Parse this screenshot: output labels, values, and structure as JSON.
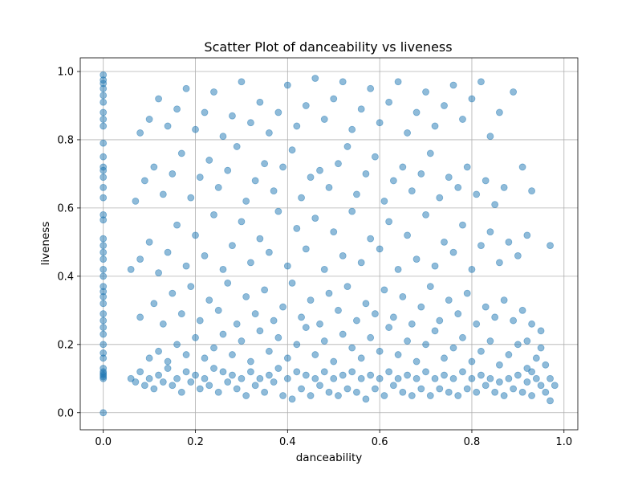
{
  "chart_data": {
    "type": "scatter",
    "title": "Scatter Plot of danceability vs liveness",
    "xlabel": "danceability",
    "ylabel": "liveness",
    "xlim": [
      -0.05,
      1.03
    ],
    "ylim": [
      -0.05,
      1.04
    ],
    "xticks": [
      0.0,
      0.2,
      0.4,
      0.6,
      0.8,
      1.0
    ],
    "yticks": [
      0.0,
      0.2,
      0.4,
      0.6,
      0.8,
      1.0
    ],
    "xtick_labels": [
      "0.0",
      "0.2",
      "0.4",
      "0.6",
      "0.8",
      "1.0"
    ],
    "ytick_labels": [
      "0.0",
      "0.2",
      "0.4",
      "0.6",
      "0.8",
      "1.0"
    ],
    "grid": true,
    "legend": "none",
    "marker_color": "#1f77b4",
    "marker_alpha": 0.5,
    "points": [
      [
        0.0,
        0.0
      ],
      [
        0.0,
        0.1
      ],
      [
        0.0,
        0.105
      ],
      [
        0.0,
        0.11
      ],
      [
        0.0,
        0.115
      ],
      [
        0.0,
        0.12
      ],
      [
        0.0,
        0.13
      ],
      [
        0.0,
        0.16
      ],
      [
        0.0,
        0.175
      ],
      [
        0.0,
        0.2
      ],
      [
        0.0,
        0.23
      ],
      [
        0.0,
        0.25
      ],
      [
        0.0,
        0.27
      ],
      [
        0.0,
        0.29
      ],
      [
        0.0,
        0.32
      ],
      [
        0.0,
        0.34
      ],
      [
        0.0,
        0.355
      ],
      [
        0.0,
        0.37
      ],
      [
        0.0,
        0.4
      ],
      [
        0.0,
        0.42
      ],
      [
        0.0,
        0.45
      ],
      [
        0.0,
        0.47
      ],
      [
        0.0,
        0.49
      ],
      [
        0.0,
        0.51
      ],
      [
        0.0,
        0.565
      ],
      [
        0.0,
        0.58
      ],
      [
        0.0,
        0.63
      ],
      [
        0.0,
        0.66
      ],
      [
        0.0,
        0.69
      ],
      [
        0.0,
        0.71
      ],
      [
        0.0,
        0.72
      ],
      [
        0.0,
        0.75
      ],
      [
        0.0,
        0.79
      ],
      [
        0.0,
        0.84
      ],
      [
        0.0,
        0.86
      ],
      [
        0.0,
        0.88
      ],
      [
        0.0,
        0.91
      ],
      [
        0.0,
        0.93
      ],
      [
        0.0,
        0.95
      ],
      [
        0.0,
        0.965
      ],
      [
        0.0,
        0.975
      ],
      [
        0.0,
        0.99
      ],
      [
        0.06,
        0.1
      ],
      [
        0.07,
        0.09
      ],
      [
        0.08,
        0.12
      ],
      [
        0.09,
        0.08
      ],
      [
        0.1,
        0.1
      ],
      [
        0.11,
        0.07
      ],
      [
        0.12,
        0.11
      ],
      [
        0.13,
        0.09
      ],
      [
        0.14,
        0.13
      ],
      [
        0.15,
        0.08
      ],
      [
        0.16,
        0.1
      ],
      [
        0.17,
        0.06
      ],
      [
        0.18,
        0.12
      ],
      [
        0.19,
        0.09
      ],
      [
        0.2,
        0.11
      ],
      [
        0.21,
        0.07
      ],
      [
        0.22,
        0.1
      ],
      [
        0.23,
        0.08
      ],
      [
        0.24,
        0.13
      ],
      [
        0.25,
        0.06
      ],
      [
        0.26,
        0.12
      ],
      [
        0.27,
        0.09
      ],
      [
        0.28,
        0.11
      ],
      [
        0.29,
        0.07
      ],
      [
        0.3,
        0.1
      ],
      [
        0.31,
        0.05
      ],
      [
        0.32,
        0.12
      ],
      [
        0.33,
        0.08
      ],
      [
        0.34,
        0.1
      ],
      [
        0.35,
        0.06
      ],
      [
        0.36,
        0.11
      ],
      [
        0.37,
        0.09
      ],
      [
        0.38,
        0.13
      ],
      [
        0.39,
        0.05
      ],
      [
        0.4,
        0.1
      ],
      [
        0.41,
        0.04
      ],
      [
        0.42,
        0.12
      ],
      [
        0.43,
        0.07
      ],
      [
        0.44,
        0.11
      ],
      [
        0.45,
        0.05
      ],
      [
        0.46,
        0.1
      ],
      [
        0.47,
        0.08
      ],
      [
        0.48,
        0.12
      ],
      [
        0.49,
        0.06
      ],
      [
        0.5,
        0.1
      ],
      [
        0.51,
        0.05
      ],
      [
        0.52,
        0.11
      ],
      [
        0.53,
        0.07
      ],
      [
        0.54,
        0.12
      ],
      [
        0.55,
        0.06
      ],
      [
        0.56,
        0.1
      ],
      [
        0.57,
        0.04
      ],
      [
        0.58,
        0.11
      ],
      [
        0.59,
        0.07
      ],
      [
        0.6,
        0.1
      ],
      [
        0.61,
        0.05
      ],
      [
        0.62,
        0.12
      ],
      [
        0.63,
        0.08
      ],
      [
        0.64,
        0.1
      ],
      [
        0.65,
        0.06
      ],
      [
        0.66,
        0.11
      ],
      [
        0.67,
        0.05
      ],
      [
        0.68,
        0.1
      ],
      [
        0.69,
        0.07
      ],
      [
        0.7,
        0.12
      ],
      [
        0.71,
        0.05
      ],
      [
        0.72,
        0.1
      ],
      [
        0.73,
        0.07
      ],
      [
        0.74,
        0.11
      ],
      [
        0.75,
        0.06
      ],
      [
        0.76,
        0.1
      ],
      [
        0.77,
        0.05
      ],
      [
        0.78,
        0.12
      ],
      [
        0.79,
        0.07
      ],
      [
        0.8,
        0.1
      ],
      [
        0.81,
        0.06
      ],
      [
        0.82,
        0.11
      ],
      [
        0.83,
        0.08
      ],
      [
        0.84,
        0.1
      ],
      [
        0.85,
        0.06
      ],
      [
        0.86,
        0.09
      ],
      [
        0.87,
        0.05
      ],
      [
        0.88,
        0.1
      ],
      [
        0.89,
        0.07
      ],
      [
        0.9,
        0.11
      ],
      [
        0.91,
        0.06
      ],
      [
        0.92,
        0.09
      ],
      [
        0.93,
        0.05
      ],
      [
        0.94,
        0.1
      ],
      [
        0.95,
        0.08
      ],
      [
        0.96,
        0.06
      ],
      [
        0.97,
        0.1
      ],
      [
        0.98,
        0.08
      ],
      [
        0.97,
        0.035
      ],
      [
        0.96,
        0.14
      ],
      [
        0.95,
        0.19
      ],
      [
        0.94,
        0.16
      ],
      [
        0.93,
        0.12
      ],
      [
        0.92,
        0.21
      ],
      [
        0.1,
        0.16
      ],
      [
        0.12,
        0.18
      ],
      [
        0.14,
        0.15
      ],
      [
        0.16,
        0.2
      ],
      [
        0.18,
        0.17
      ],
      [
        0.2,
        0.22
      ],
      [
        0.22,
        0.16
      ],
      [
        0.24,
        0.19
      ],
      [
        0.26,
        0.23
      ],
      [
        0.28,
        0.17
      ],
      [
        0.3,
        0.21
      ],
      [
        0.32,
        0.15
      ],
      [
        0.34,
        0.24
      ],
      [
        0.36,
        0.18
      ],
      [
        0.38,
        0.22
      ],
      [
        0.4,
        0.16
      ],
      [
        0.42,
        0.2
      ],
      [
        0.44,
        0.25
      ],
      [
        0.46,
        0.17
      ],
      [
        0.48,
        0.21
      ],
      [
        0.5,
        0.15
      ],
      [
        0.52,
        0.23
      ],
      [
        0.54,
        0.19
      ],
      [
        0.56,
        0.16
      ],
      [
        0.58,
        0.22
      ],
      [
        0.6,
        0.18
      ],
      [
        0.62,
        0.25
      ],
      [
        0.64,
        0.17
      ],
      [
        0.66,
        0.21
      ],
      [
        0.68,
        0.15
      ],
      [
        0.7,
        0.2
      ],
      [
        0.72,
        0.24
      ],
      [
        0.74,
        0.16
      ],
      [
        0.76,
        0.19
      ],
      [
        0.78,
        0.22
      ],
      [
        0.8,
        0.15
      ],
      [
        0.82,
        0.18
      ],
      [
        0.84,
        0.21
      ],
      [
        0.86,
        0.14
      ],
      [
        0.88,
        0.17
      ],
      [
        0.9,
        0.2
      ],
      [
        0.92,
        0.13
      ],
      [
        0.08,
        0.28
      ],
      [
        0.11,
        0.32
      ],
      [
        0.13,
        0.26
      ],
      [
        0.15,
        0.35
      ],
      [
        0.17,
        0.29
      ],
      [
        0.19,
        0.37
      ],
      [
        0.21,
        0.27
      ],
      [
        0.23,
        0.33
      ],
      [
        0.25,
        0.3
      ],
      [
        0.27,
        0.38
      ],
      [
        0.29,
        0.26
      ],
      [
        0.31,
        0.34
      ],
      [
        0.33,
        0.29
      ],
      [
        0.35,
        0.36
      ],
      [
        0.37,
        0.27
      ],
      [
        0.39,
        0.31
      ],
      [
        0.41,
        0.38
      ],
      [
        0.43,
        0.28
      ],
      [
        0.45,
        0.33
      ],
      [
        0.47,
        0.26
      ],
      [
        0.49,
        0.35
      ],
      [
        0.51,
        0.3
      ],
      [
        0.53,
        0.37
      ],
      [
        0.55,
        0.27
      ],
      [
        0.57,
        0.32
      ],
      [
        0.59,
        0.29
      ],
      [
        0.61,
        0.36
      ],
      [
        0.63,
        0.28
      ],
      [
        0.65,
        0.34
      ],
      [
        0.67,
        0.26
      ],
      [
        0.69,
        0.31
      ],
      [
        0.71,
        0.37
      ],
      [
        0.73,
        0.27
      ],
      [
        0.75,
        0.33
      ],
      [
        0.77,
        0.29
      ],
      [
        0.79,
        0.35
      ],
      [
        0.81,
        0.26
      ],
      [
        0.83,
        0.31
      ],
      [
        0.85,
        0.28
      ],
      [
        0.87,
        0.33
      ],
      [
        0.89,
        0.27
      ],
      [
        0.91,
        0.3
      ],
      [
        0.93,
        0.26
      ],
      [
        0.95,
        0.24
      ],
      [
        0.06,
        0.42
      ],
      [
        0.08,
        0.45
      ],
      [
        0.1,
        0.5
      ],
      [
        0.12,
        0.41
      ],
      [
        0.14,
        0.47
      ],
      [
        0.16,
        0.55
      ],
      [
        0.18,
        0.43
      ],
      [
        0.2,
        0.52
      ],
      [
        0.22,
        0.46
      ],
      [
        0.24,
        0.58
      ],
      [
        0.26,
        0.42
      ],
      [
        0.28,
        0.49
      ],
      [
        0.3,
        0.56
      ],
      [
        0.32,
        0.44
      ],
      [
        0.34,
        0.51
      ],
      [
        0.36,
        0.47
      ],
      [
        0.38,
        0.59
      ],
      [
        0.4,
        0.43
      ],
      [
        0.42,
        0.54
      ],
      [
        0.44,
        0.48
      ],
      [
        0.46,
        0.57
      ],
      [
        0.48,
        0.42
      ],
      [
        0.5,
        0.53
      ],
      [
        0.52,
        0.46
      ],
      [
        0.54,
        0.59
      ],
      [
        0.56,
        0.44
      ],
      [
        0.58,
        0.51
      ],
      [
        0.6,
        0.48
      ],
      [
        0.62,
        0.56
      ],
      [
        0.64,
        0.42
      ],
      [
        0.66,
        0.52
      ],
      [
        0.68,
        0.45
      ],
      [
        0.7,
        0.58
      ],
      [
        0.72,
        0.43
      ],
      [
        0.74,
        0.5
      ],
      [
        0.76,
        0.47
      ],
      [
        0.78,
        0.55
      ],
      [
        0.8,
        0.42
      ],
      [
        0.82,
        0.49
      ],
      [
        0.84,
        0.53
      ],
      [
        0.86,
        0.44
      ],
      [
        0.88,
        0.5
      ],
      [
        0.9,
        0.46
      ],
      [
        0.92,
        0.52
      ],
      [
        0.97,
        0.49
      ],
      [
        0.07,
        0.62
      ],
      [
        0.09,
        0.68
      ],
      [
        0.11,
        0.72
      ],
      [
        0.13,
        0.64
      ],
      [
        0.15,
        0.7
      ],
      [
        0.17,
        0.76
      ],
      [
        0.19,
        0.63
      ],
      [
        0.21,
        0.69
      ],
      [
        0.23,
        0.74
      ],
      [
        0.25,
        0.66
      ],
      [
        0.27,
        0.71
      ],
      [
        0.29,
        0.78
      ],
      [
        0.31,
        0.62
      ],
      [
        0.33,
        0.68
      ],
      [
        0.35,
        0.73
      ],
      [
        0.37,
        0.65
      ],
      [
        0.39,
        0.72
      ],
      [
        0.41,
        0.77
      ],
      [
        0.43,
        0.63
      ],
      [
        0.45,
        0.69
      ],
      [
        0.47,
        0.71
      ],
      [
        0.49,
        0.66
      ],
      [
        0.51,
        0.73
      ],
      [
        0.53,
        0.78
      ],
      [
        0.55,
        0.64
      ],
      [
        0.57,
        0.7
      ],
      [
        0.59,
        0.75
      ],
      [
        0.61,
        0.62
      ],
      [
        0.63,
        0.68
      ],
      [
        0.65,
        0.72
      ],
      [
        0.67,
        0.65
      ],
      [
        0.69,
        0.7
      ],
      [
        0.71,
        0.76
      ],
      [
        0.73,
        0.63
      ],
      [
        0.75,
        0.69
      ],
      [
        0.77,
        0.66
      ],
      [
        0.79,
        0.72
      ],
      [
        0.81,
        0.64
      ],
      [
        0.83,
        0.68
      ],
      [
        0.85,
        0.61
      ],
      [
        0.87,
        0.66
      ],
      [
        0.91,
        0.72
      ],
      [
        0.93,
        0.65
      ],
      [
        0.08,
        0.82
      ],
      [
        0.1,
        0.86
      ],
      [
        0.12,
        0.92
      ],
      [
        0.14,
        0.84
      ],
      [
        0.16,
        0.89
      ],
      [
        0.18,
        0.95
      ],
      [
        0.2,
        0.83
      ],
      [
        0.22,
        0.88
      ],
      [
        0.24,
        0.94
      ],
      [
        0.26,
        0.81
      ],
      [
        0.28,
        0.87
      ],
      [
        0.3,
        0.97
      ],
      [
        0.32,
        0.85
      ],
      [
        0.34,
        0.91
      ],
      [
        0.36,
        0.82
      ],
      [
        0.38,
        0.88
      ],
      [
        0.4,
        0.96
      ],
      [
        0.42,
        0.84
      ],
      [
        0.44,
        0.9
      ],
      [
        0.46,
        0.98
      ],
      [
        0.48,
        0.86
      ],
      [
        0.5,
        0.92
      ],
      [
        0.52,
        0.97
      ],
      [
        0.54,
        0.83
      ],
      [
        0.56,
        0.89
      ],
      [
        0.58,
        0.95
      ],
      [
        0.6,
        0.85
      ],
      [
        0.62,
        0.91
      ],
      [
        0.64,
        0.97
      ],
      [
        0.66,
        0.82
      ],
      [
        0.68,
        0.88
      ],
      [
        0.7,
        0.94
      ],
      [
        0.72,
        0.84
      ],
      [
        0.74,
        0.9
      ],
      [
        0.76,
        0.96
      ],
      [
        0.78,
        0.86
      ],
      [
        0.8,
        0.92
      ],
      [
        0.82,
        0.97
      ],
      [
        0.84,
        0.81
      ],
      [
        0.86,
        0.88
      ],
      [
        0.89,
        0.94
      ]
    ]
  }
}
